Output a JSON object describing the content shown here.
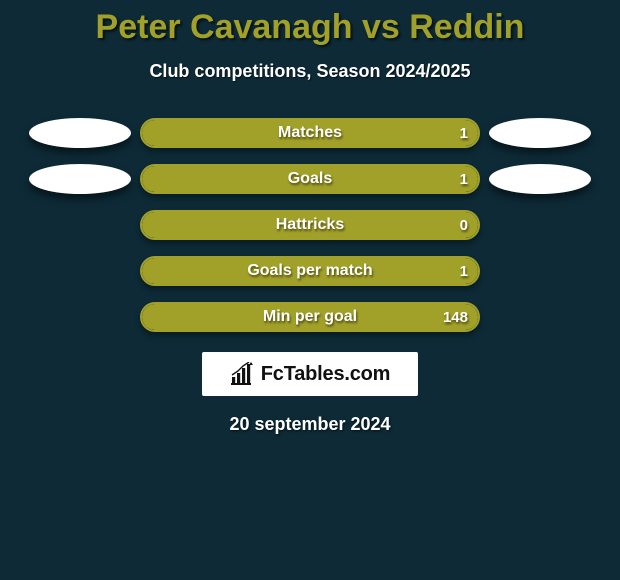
{
  "page": {
    "background_color": "#0d2a36",
    "title": "Peter Cavanagh vs Reddin",
    "title_color": "#a1a028",
    "subtitle": "Club competitions, Season 2024/2025",
    "date": "20 september 2024"
  },
  "left_player_color": "#ffffff",
  "right_player_color": "#ffffff",
  "bar_border_color": "#a1a028",
  "bar_fill_color": "#a1a028",
  "stats": [
    {
      "label": "Matches",
      "value": "1",
      "fill_percent": 100,
      "show_left_chip": true,
      "show_right_chip": true
    },
    {
      "label": "Goals",
      "value": "1",
      "fill_percent": 100,
      "show_left_chip": true,
      "show_right_chip": true
    },
    {
      "label": "Hattricks",
      "value": "0",
      "fill_percent": 100,
      "show_left_chip": false,
      "show_right_chip": false
    },
    {
      "label": "Goals per match",
      "value": "1",
      "fill_percent": 100,
      "show_left_chip": false,
      "show_right_chip": false
    },
    {
      "label": "Min per goal",
      "value": "148",
      "fill_percent": 100,
      "show_left_chip": false,
      "show_right_chip": false
    }
  ],
  "brand": {
    "text": "FcTables.com",
    "icon_color": "#111111"
  }
}
